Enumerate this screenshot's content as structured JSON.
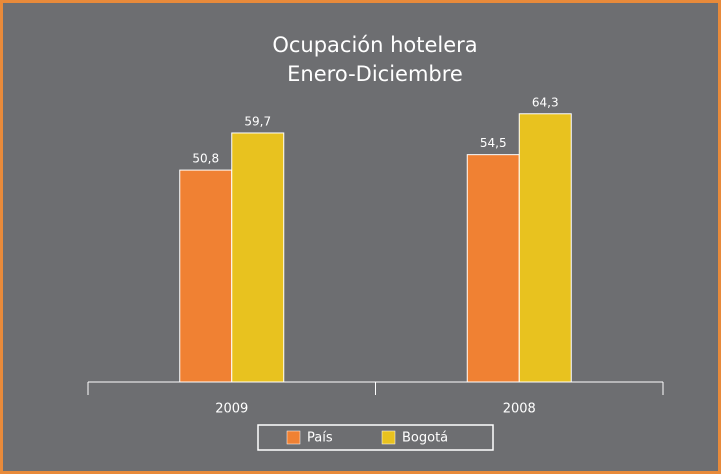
{
  "chart_data": {
    "type": "bar",
    "title": "Ocupación hotelera",
    "subtitle": "Enero-Diciembre",
    "categories": [
      "2009",
      "2008"
    ],
    "series": [
      {
        "name": "País",
        "color": "#f08133",
        "values": [
          50.8,
          54.5
        ],
        "value_labels": [
          "50,8",
          "54,5"
        ]
      },
      {
        "name": "Bogotá",
        "color": "#e8c21f",
        "values": [
          59.7,
          64.3
        ],
        "value_labels": [
          "59,7",
          "64,3"
        ]
      }
    ],
    "ylim": [
      0,
      70
    ],
    "legend": "bottom"
  }
}
